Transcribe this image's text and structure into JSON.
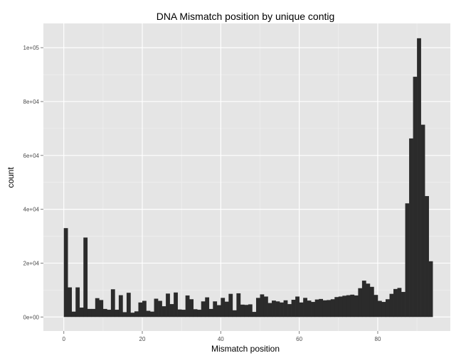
{
  "chart_data": {
    "type": "bar",
    "title": "DNA Mismatch position by unique contig",
    "xlabel": "Mismatch position",
    "ylabel": "count",
    "xlim": [
      -5.2,
      98.5
    ],
    "ylim": [
      -5200,
      109000
    ],
    "x_ticks": [
      0,
      20,
      40,
      60,
      80
    ],
    "x_tick_labels": [
      "0",
      "20",
      "40",
      "60",
      "80"
    ],
    "y_ticks": [
      0,
      20000,
      40000,
      60000,
      80000,
      100000
    ],
    "y_tick_labels": [
      "0e+00",
      "2e+04",
      "4e+04",
      "6e+04",
      "8e+04",
      "1e+05"
    ],
    "bin_width": 1,
    "grid": true,
    "colors": {
      "panel": "#e5e5e5",
      "grid_major": "#ffffff",
      "grid_minor": "#f2f2f2",
      "bar": "#2b2b2b",
      "tick_text": "#4d4d4d"
    },
    "x": [
      0,
      1,
      2,
      3,
      4,
      5,
      6,
      7,
      8,
      9,
      10,
      11,
      12,
      13,
      14,
      15,
      16,
      17,
      18,
      19,
      20,
      21,
      22,
      23,
      24,
      25,
      26,
      27,
      28,
      29,
      30,
      31,
      32,
      33,
      34,
      35,
      36,
      37,
      38,
      39,
      40,
      41,
      42,
      43,
      44,
      45,
      46,
      47,
      48,
      49,
      50,
      51,
      52,
      53,
      54,
      55,
      56,
      57,
      58,
      59,
      60,
      61,
      62,
      63,
      64,
      65,
      66,
      67,
      68,
      69,
      70,
      71,
      72,
      73,
      74,
      75,
      76,
      77,
      78,
      79,
      80,
      81,
      82,
      83,
      84,
      85,
      86,
      87,
      88,
      89,
      90,
      91,
      92,
      93
    ],
    "values": [
      33000,
      11000,
      2000,
      11000,
      3500,
      29500,
      3000,
      3000,
      7000,
      6300,
      3000,
      2700,
      10300,
      2700,
      8100,
      1800,
      9000,
      1600,
      2100,
      5400,
      6000,
      2300,
      2000,
      6800,
      6000,
      4000,
      8700,
      4800,
      9100,
      2800,
      2700,
      8000,
      6600,
      2900,
      2700,
      5800,
      7300,
      3000,
      5800,
      4400,
      7100,
      5700,
      8600,
      2500,
      8800,
      4600,
      4500,
      4700,
      1900,
      7100,
      8400,
      7600,
      5200,
      6100,
      5800,
      5400,
      6200,
      4800,
      6400,
      7600,
      5400,
      7100,
      6100,
      5600,
      6500,
      6700,
      6200,
      6300,
      6600,
      7400,
      7600,
      7900,
      8100,
      8300,
      8000,
      10700,
      13500,
      12400,
      11200,
      8200,
      6000,
      5600,
      6600,
      8600,
      10400,
      10800,
      9300,
      42200,
      66300,
      89200,
      103500,
      71400,
      44900,
      20700
    ]
  }
}
